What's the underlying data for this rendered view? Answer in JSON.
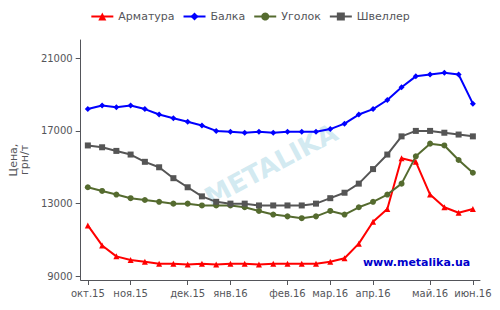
{
  "chart_data": {
    "type": "line",
    "ylabel": "Цена,\nгрн/т",
    "categories": [
      "окт.15",
      null,
      null,
      "ноя.15",
      null,
      null,
      null,
      "дек.15",
      null,
      null,
      "янв.16",
      null,
      null,
      null,
      "фев.16",
      null,
      null,
      "мар.16",
      null,
      null,
      "апр.16",
      null,
      null,
      null,
      "май.16",
      null,
      null,
      "июн.16"
    ],
    "series": [
      {
        "name": "Арматура",
        "color": "#ff0000",
        "marker": "triangle",
        "values": [
          11800,
          10700,
          10100,
          9900,
          9800,
          9700,
          9700,
          9650,
          9700,
          9650,
          9700,
          9700,
          9650,
          9700,
          9700,
          9700,
          9700,
          9800,
          10000,
          10800,
          12000,
          12700,
          15500,
          15300,
          13500,
          12800,
          12500,
          12700
        ]
      },
      {
        "name": "Балка",
        "color": "#0000ff",
        "marker": "diamond",
        "values": [
          18200,
          18400,
          18300,
          18400,
          18200,
          17900,
          17700,
          17500,
          17300,
          17000,
          16950,
          16900,
          16950,
          16900,
          16950,
          16950,
          16950,
          17100,
          17400,
          17900,
          18200,
          18700,
          19400,
          20000,
          20100,
          20200,
          20100,
          18500
        ]
      },
      {
        "name": "Уголок",
        "color": "#556b2f",
        "marker": "circle",
        "values": [
          13900,
          13700,
          13500,
          13300,
          13200,
          13100,
          13000,
          13000,
          12900,
          12900,
          12900,
          12800,
          12600,
          12400,
          12300,
          12200,
          12300,
          12600,
          12400,
          12800,
          13100,
          13500,
          14100,
          15600,
          16300,
          16200,
          15400,
          14700
        ]
      },
      {
        "name": "Швеллер",
        "color": "#555555",
        "marker": "rect",
        "values": [
          16200,
          16100,
          15900,
          15700,
          15300,
          15000,
          14400,
          13900,
          13400,
          13100,
          13000,
          13000,
          12900,
          12900,
          12900,
          12900,
          13000,
          13300,
          13600,
          14100,
          14900,
          15700,
          16700,
          17000,
          17000,
          16900,
          16800,
          16700
        ]
      }
    ],
    "ylim": [
      8800,
      22000
    ],
    "yticks": [
      9000,
      13000,
      17000,
      21000
    ],
    "grid": false,
    "legend": "upper center",
    "annotations": [
      "www.metalika.ua",
      "METALIKA"
    ]
  }
}
